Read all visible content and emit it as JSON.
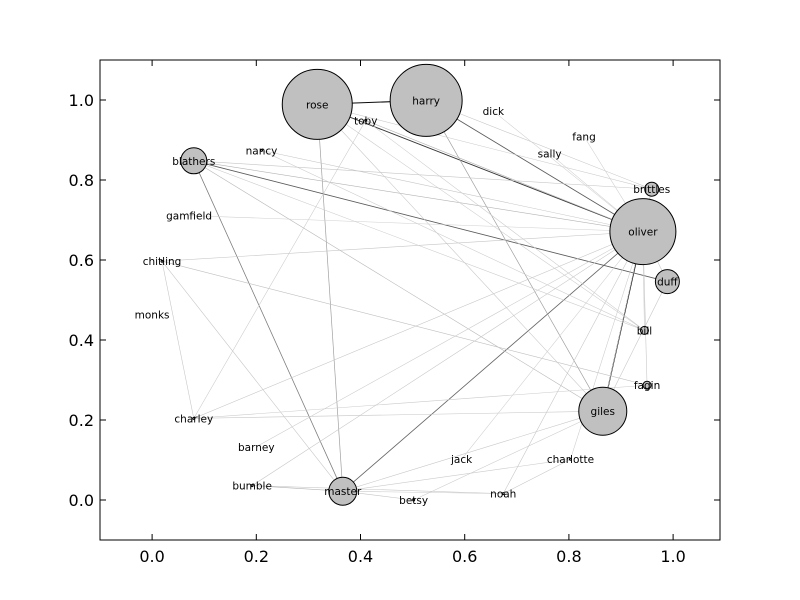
{
  "chart_data": {
    "type": "network",
    "title": "",
    "xlabel": "",
    "ylabel": "",
    "xlim": [
      -0.1,
      1.09
    ],
    "ylim": [
      -0.1,
      1.1
    ],
    "xticks": [
      0.0,
      0.2,
      0.4,
      0.6,
      0.8,
      1.0
    ],
    "yticks": [
      0.0,
      0.2,
      0.4,
      0.6,
      0.8,
      1.0
    ],
    "xtick_labels": [
      "0.0",
      "0.2",
      "0.4",
      "0.6",
      "0.8",
      "1.0"
    ],
    "ytick_labels": [
      "0.0",
      "0.2",
      "0.4",
      "0.6",
      "0.8",
      "1.0"
    ],
    "node_color": "#c0c0c0",
    "node_edge_color": "#000000",
    "nodes": [
      {
        "id": "rose",
        "x": 0.317,
        "y": 0.989,
        "size": 35
      },
      {
        "id": "harry",
        "x": 0.526,
        "y": 0.999,
        "size": 36
      },
      {
        "id": "toby",
        "x": 0.41,
        "y": 0.949,
        "size": 1
      },
      {
        "id": "dick",
        "x": 0.655,
        "y": 0.972,
        "size": 0
      },
      {
        "id": "fang",
        "x": 0.829,
        "y": 0.909,
        "size": 0
      },
      {
        "id": "sally",
        "x": 0.763,
        "y": 0.866,
        "size": 0
      },
      {
        "id": "nancy",
        "x": 0.21,
        "y": 0.874,
        "size": 1
      },
      {
        "id": "blathers",
        "x": 0.08,
        "y": 0.848,
        "size": 13
      },
      {
        "id": "brittles",
        "x": 0.959,
        "y": 0.777,
        "size": 7
      },
      {
        "id": "gamfield",
        "x": 0.071,
        "y": 0.711,
        "size": 0
      },
      {
        "id": "oliver",
        "x": 0.942,
        "y": 0.671,
        "size": 33
      },
      {
        "id": "chitling",
        "x": 0.019,
        "y": 0.597,
        "size": 1
      },
      {
        "id": "duff",
        "x": 0.989,
        "y": 0.546,
        "size": 12
      },
      {
        "id": "monks",
        "x": 0.0,
        "y": 0.464,
        "size": 0
      },
      {
        "id": "bill",
        "x": 0.945,
        "y": 0.424,
        "size": 4
      },
      {
        "id": "fagin",
        "x": 0.95,
        "y": 0.287,
        "size": 4
      },
      {
        "id": "giles",
        "x": 0.865,
        "y": 0.222,
        "size": 24
      },
      {
        "id": "charley",
        "x": 0.08,
        "y": 0.204,
        "size": 1
      },
      {
        "id": "barney",
        "x": 0.2,
        "y": 0.133,
        "size": 0
      },
      {
        "id": "jack",
        "x": 0.594,
        "y": 0.102,
        "size": 0
      },
      {
        "id": "charlotte",
        "x": 0.803,
        "y": 0.102,
        "size": 1
      },
      {
        "id": "bumble",
        "x": 0.192,
        "y": 0.036,
        "size": 1
      },
      {
        "id": "master",
        "x": 0.366,
        "y": 0.022,
        "size": 14
      },
      {
        "id": "noah",
        "x": 0.674,
        "y": 0.016,
        "size": 1
      },
      {
        "id": "betsy",
        "x": 0.502,
        "y": 0.0,
        "size": 1
      }
    ],
    "edges": [
      {
        "source": "rose",
        "target": "harry",
        "weight": 0.95
      },
      {
        "source": "rose",
        "target": "oliver",
        "weight": 0.75
      },
      {
        "source": "harry",
        "target": "oliver",
        "weight": 0.6
      },
      {
        "source": "oliver",
        "target": "giles",
        "weight": 0.95
      },
      {
        "source": "blathers",
        "target": "duff",
        "weight": 0.6
      },
      {
        "source": "master",
        "target": "oliver",
        "weight": 0.55
      },
      {
        "source": "blathers",
        "target": "master",
        "weight": 0.45
      },
      {
        "source": "rose",
        "target": "master",
        "weight": 0.3
      },
      {
        "source": "harry",
        "target": "giles",
        "weight": 0.3
      },
      {
        "source": "blathers",
        "target": "oliver",
        "weight": 0.2
      },
      {
        "source": "blathers",
        "target": "giles",
        "weight": 0.18
      },
      {
        "source": "toby",
        "target": "oliver",
        "weight": 0.2
      },
      {
        "source": "nancy",
        "target": "oliver",
        "weight": 0.12
      },
      {
        "source": "chitling",
        "target": "oliver",
        "weight": 0.12
      },
      {
        "source": "chitling",
        "target": "fagin",
        "weight": 0.15
      },
      {
        "source": "chitling",
        "target": "charley",
        "weight": 0.12
      },
      {
        "source": "chitling",
        "target": "master",
        "weight": 0.12
      },
      {
        "source": "charley",
        "target": "oliver",
        "weight": 0.12
      },
      {
        "source": "charley",
        "target": "giles",
        "weight": 0.12
      },
      {
        "source": "charley",
        "target": "fagin",
        "weight": 0.1
      },
      {
        "source": "bumble",
        "target": "oliver",
        "weight": 0.12
      },
      {
        "source": "bumble",
        "target": "master",
        "weight": 0.2
      },
      {
        "source": "bumble",
        "target": "noah",
        "weight": 0.12
      },
      {
        "source": "master",
        "target": "giles",
        "weight": 0.12
      },
      {
        "source": "master",
        "target": "charlotte",
        "weight": 0.1
      },
      {
        "source": "betsy",
        "target": "master",
        "weight": 0.12
      },
      {
        "source": "betsy",
        "target": "giles",
        "weight": 0.1
      },
      {
        "source": "noah",
        "target": "charlotte",
        "weight": 0.12
      },
      {
        "source": "noah",
        "target": "oliver",
        "weight": 0.12
      },
      {
        "source": "charlotte",
        "target": "oliver",
        "weight": 0.1
      },
      {
        "source": "giles",
        "target": "duff",
        "weight": 0.12
      },
      {
        "source": "giles",
        "target": "brittles",
        "weight": 0.12
      },
      {
        "source": "oliver",
        "target": "duff",
        "weight": 0.12
      },
      {
        "source": "oliver",
        "target": "bill",
        "weight": 0.12
      },
      {
        "source": "oliver",
        "target": "fagin",
        "weight": 0.12
      },
      {
        "source": "oliver",
        "target": "brittles",
        "weight": 0.12
      },
      {
        "source": "rose",
        "target": "brittles",
        "weight": 0.1
      },
      {
        "source": "rose",
        "target": "bill",
        "weight": 0.1
      },
      {
        "source": "rose",
        "target": "giles",
        "weight": 0.12
      },
      {
        "source": "toby",
        "target": "charley",
        "weight": 0.1
      },
      {
        "source": "toby",
        "target": "bill",
        "weight": 0.1
      },
      {
        "source": "nancy",
        "target": "bill",
        "weight": 0.1
      },
      {
        "source": "blathers",
        "target": "brittles",
        "weight": 0.12
      },
      {
        "source": "blathers",
        "target": "bill",
        "weight": 0.1
      },
      {
        "source": "barney",
        "target": "oliver",
        "weight": 0.1
      },
      {
        "source": "master",
        "target": "noah",
        "weight": 0.1
      },
      {
        "source": "harry",
        "target": "brittles",
        "weight": 0.12
      },
      {
        "source": "gamfield",
        "target": "oliver",
        "weight": 0.08
      },
      {
        "source": "jack",
        "target": "oliver",
        "weight": 0.08
      },
      {
        "source": "sally",
        "target": "oliver",
        "weight": 0.08
      },
      {
        "source": "fang",
        "target": "oliver",
        "weight": 0.08
      },
      {
        "source": "dick",
        "target": "oliver",
        "weight": 0.08
      }
    ]
  }
}
